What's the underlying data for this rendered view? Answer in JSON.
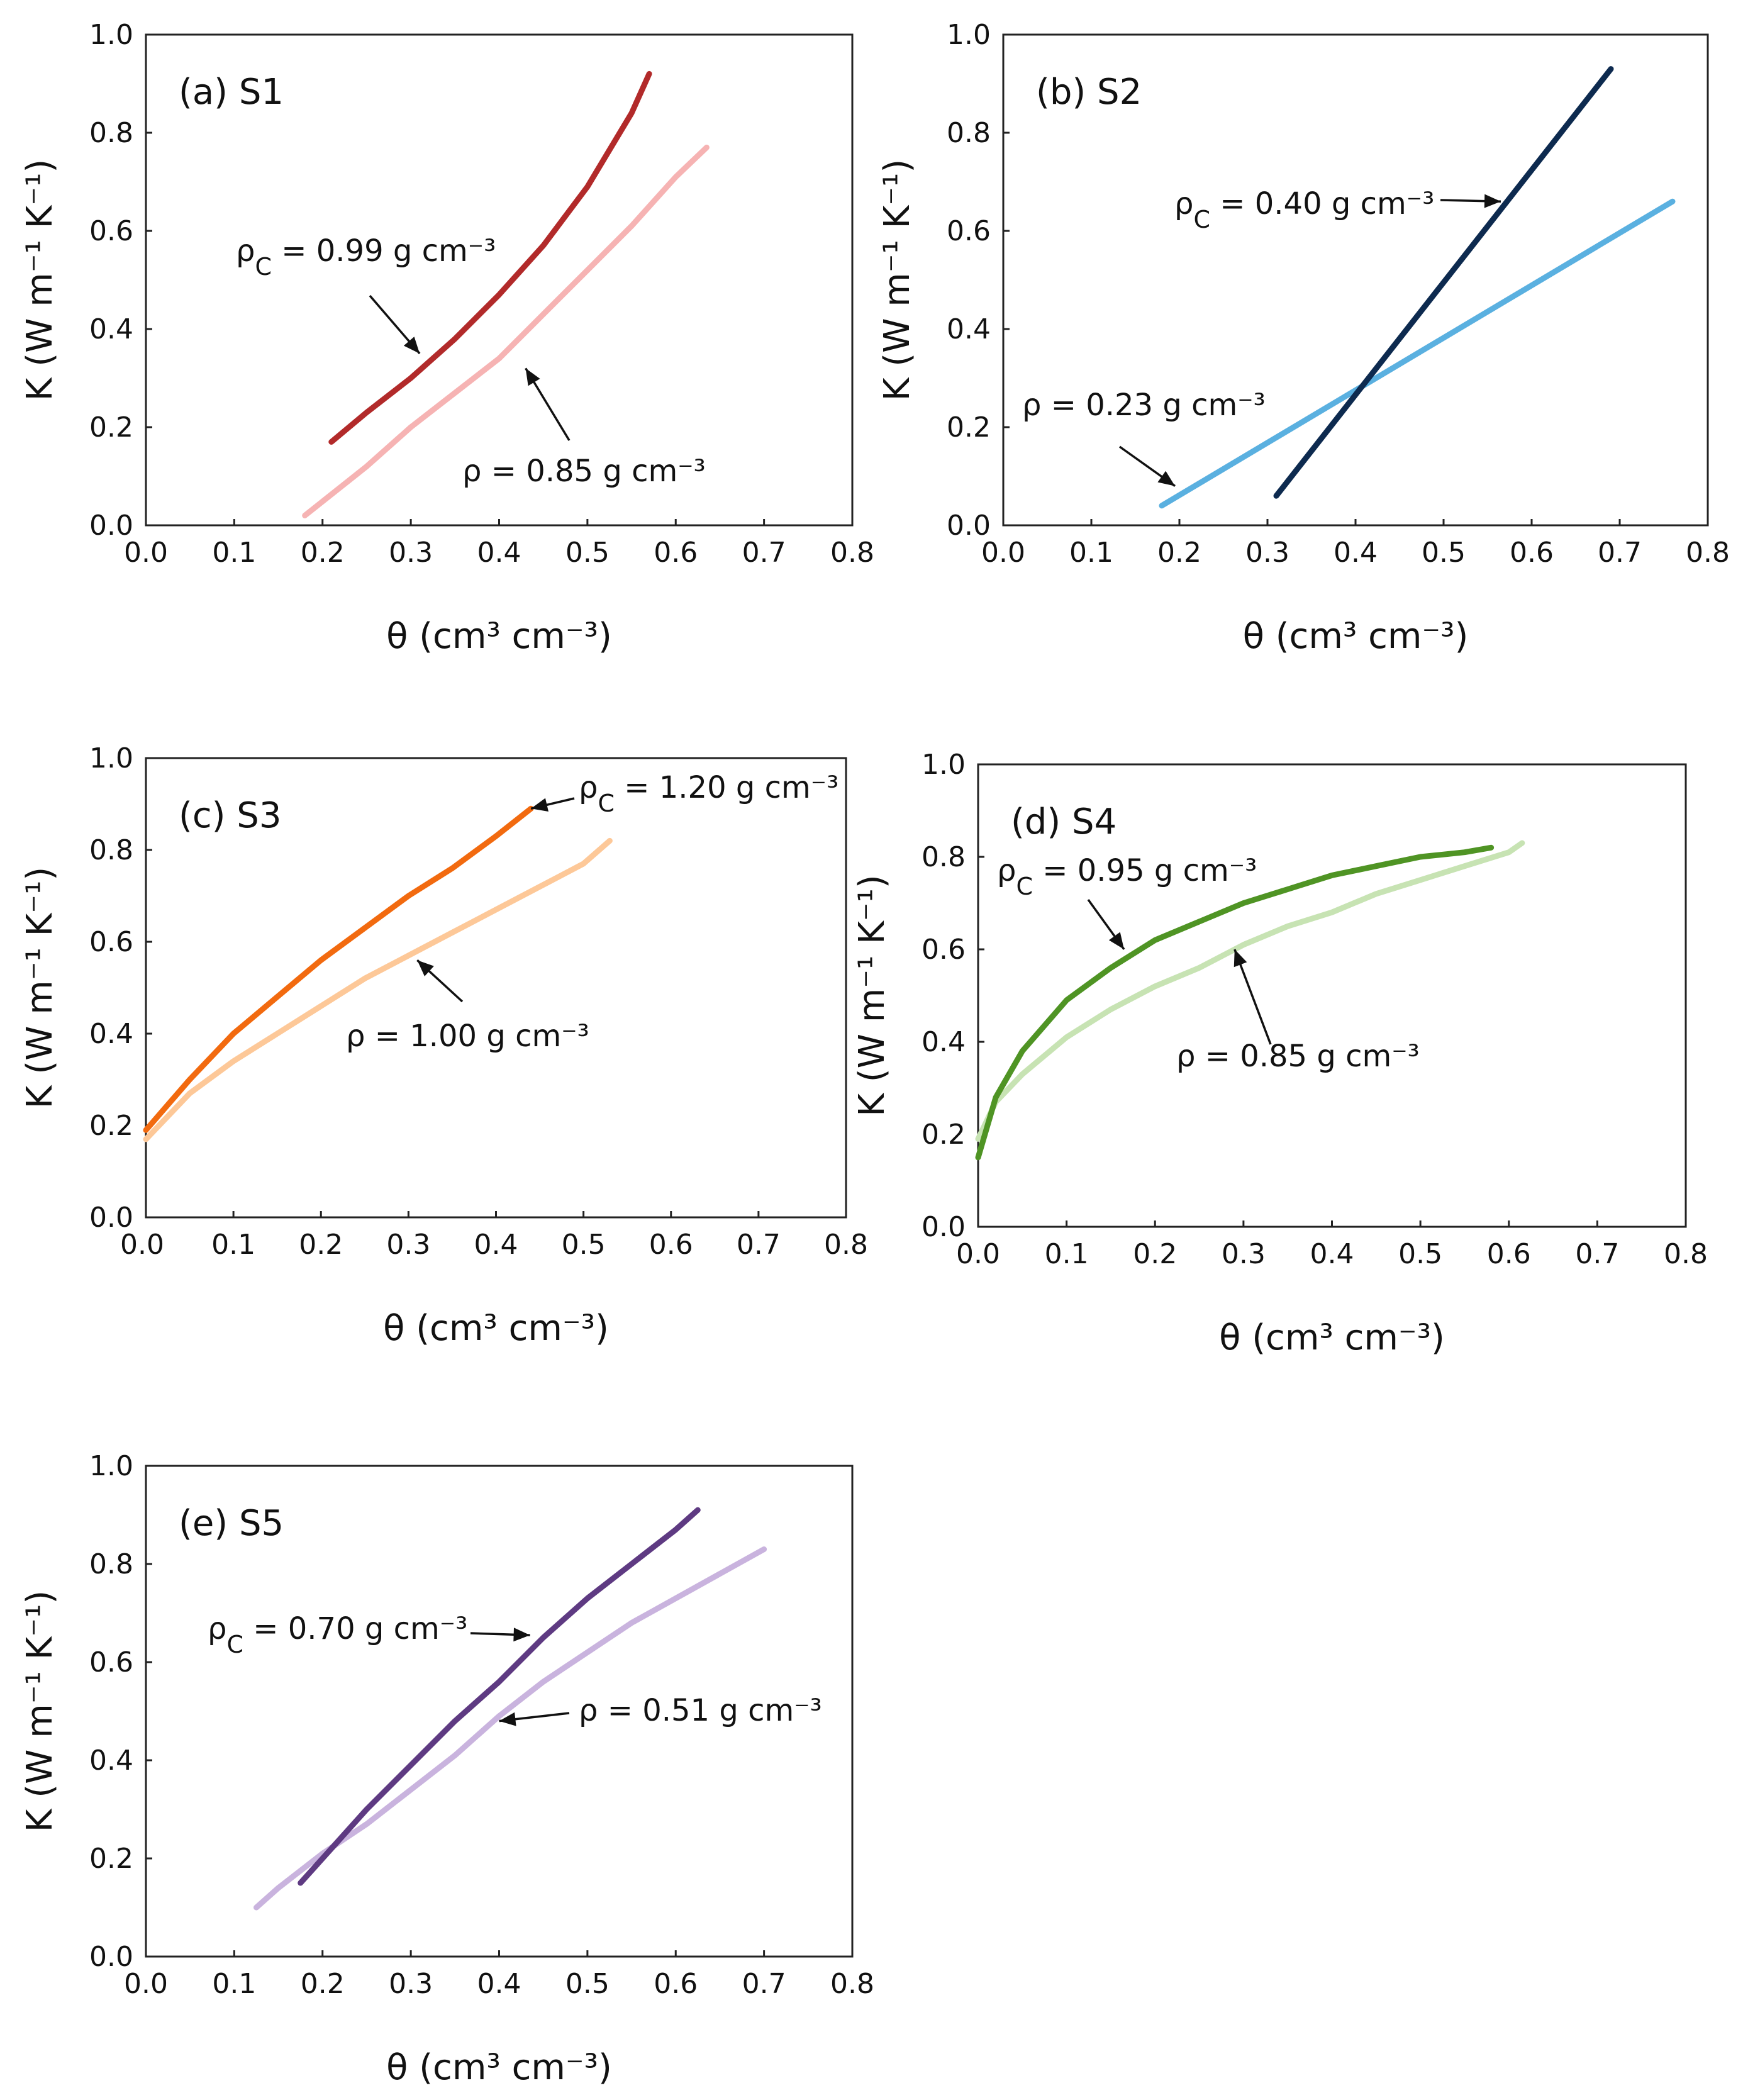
{
  "figure": {
    "xlabel": "θ (cm³ cm⁻³)",
    "ylabel": "K (W m⁻¹ K⁻¹)"
  },
  "chart_data": [
    {
      "type": "line",
      "id": "S1",
      "title": "(a) S1",
      "xlabel": "θ (cm³ cm⁻³)",
      "ylabel": "K (W m⁻¹ K⁻¹)",
      "xlim": [
        0.0,
        0.8
      ],
      "ylim": [
        0.0,
        1.0
      ],
      "x_ticks": [
        "0.0",
        "0.1",
        "0.2",
        "0.3",
        "0.4",
        "0.5",
        "0.6",
        "0.7",
        "0.8"
      ],
      "y_ticks": [
        "0.0",
        "0.2",
        "0.4",
        "0.6",
        "0.8",
        "1.0"
      ],
      "series": [
        {
          "name": "ρc = 0.99 g cm⁻³",
          "color": "#b22a2a",
          "x": [
            0.21,
            0.25,
            0.3,
            0.35,
            0.4,
            0.45,
            0.5,
            0.55,
            0.57
          ],
          "y": [
            0.17,
            0.23,
            0.3,
            0.38,
            0.47,
            0.57,
            0.69,
            0.84,
            0.92
          ]
        },
        {
          "name": "ρ = 0.85 g cm⁻³",
          "color": "#f6b3b3",
          "x": [
            0.18,
            0.25,
            0.3,
            0.35,
            0.4,
            0.45,
            0.5,
            0.55,
            0.6,
            0.635
          ],
          "y": [
            0.02,
            0.12,
            0.2,
            0.27,
            0.34,
            0.43,
            0.52,
            0.61,
            0.71,
            0.77
          ]
        }
      ],
      "annotations": [
        {
          "text": "ρc = 0.99 g cm⁻³",
          "series": 0,
          "x": 0.31,
          "y": 0.35
        },
        {
          "text": "ρ = 0.85 g cm⁻³",
          "series": 1,
          "x": 0.43,
          "y": 0.32
        }
      ]
    },
    {
      "type": "line",
      "id": "S2",
      "title": "(b) S2",
      "xlabel": "θ (cm³ cm⁻³)",
      "ylabel": "K (W m⁻¹ K⁻¹)",
      "xlim": [
        0.0,
        0.8
      ],
      "ylim": [
        0.0,
        1.0
      ],
      "x_ticks": [
        "0.0",
        "0.1",
        "0.2",
        "0.3",
        "0.4",
        "0.5",
        "0.6",
        "0.7",
        "0.8"
      ],
      "y_ticks": [
        "0.0",
        "0.2",
        "0.4",
        "0.6",
        "0.8",
        "1.0"
      ],
      "series": [
        {
          "name": "ρc = 0.40 g cm⁻³",
          "color": "#0d2a4f",
          "x": [
            0.31,
            0.69
          ],
          "y": [
            0.06,
            0.93
          ]
        },
        {
          "name": "ρ = 0.23 g cm⁻³",
          "color": "#5ab0e0",
          "x": [
            0.18,
            0.76
          ],
          "y": [
            0.04,
            0.66
          ]
        }
      ],
      "annotations": [
        {
          "text": "ρc = 0.40 g cm⁻³",
          "series": 0,
          "x": 0.565,
          "y": 0.66
        },
        {
          "text": "ρ = 0.23 g cm⁻³",
          "series": 1,
          "x": 0.195,
          "y": 0.08
        }
      ]
    },
    {
      "type": "line",
      "id": "S3",
      "title": "(c) S3",
      "xlabel": "θ (cm³ cm⁻³)",
      "ylabel": "K (W m⁻¹ K⁻¹)",
      "xlim": [
        0.0,
        0.8
      ],
      "ylim": [
        0.0,
        1.0
      ],
      "x_ticks": [
        "0.0",
        "0.1",
        "0.2",
        "0.3",
        "0.4",
        "0.5",
        "0.6",
        "0.7",
        "0.8"
      ],
      "y_ticks": [
        "0.0",
        "0.2",
        "0.4",
        "0.6",
        "0.8",
        "1.0"
      ],
      "series": [
        {
          "name": "ρc = 1.20 g cm⁻³",
          "color": "#f26a0f",
          "x": [
            0.0,
            0.05,
            0.1,
            0.15,
            0.2,
            0.25,
            0.3,
            0.35,
            0.4,
            0.44
          ],
          "y": [
            0.19,
            0.3,
            0.4,
            0.48,
            0.56,
            0.63,
            0.7,
            0.76,
            0.83,
            0.89
          ]
        },
        {
          "name": "ρ = 1.00 g cm⁻³",
          "color": "#fdc898",
          "x": [
            0.0,
            0.05,
            0.1,
            0.15,
            0.2,
            0.25,
            0.3,
            0.35,
            0.4,
            0.45,
            0.5,
            0.53
          ],
          "y": [
            0.17,
            0.27,
            0.34,
            0.4,
            0.46,
            0.52,
            0.57,
            0.62,
            0.67,
            0.72,
            0.77,
            0.82
          ]
        }
      ],
      "annotations": [
        {
          "text": "ρc = 1.20 g cm⁻³",
          "series": 0,
          "x": 0.44,
          "y": 0.89
        },
        {
          "text": "ρ = 1.00 g cm⁻³",
          "series": 1,
          "x": 0.31,
          "y": 0.56
        }
      ]
    },
    {
      "type": "line",
      "id": "S4",
      "title": "(d) S4",
      "xlabel": "θ (cm³ cm⁻³)",
      "ylabel": "K (W m⁻¹ K⁻¹)",
      "xlim": [
        0.0,
        0.8
      ],
      "ylim": [
        0.0,
        1.0
      ],
      "x_ticks": [
        "0.0",
        "0.1",
        "0.2",
        "0.3",
        "0.4",
        "0.5",
        "0.6",
        "0.7",
        "0.8"
      ],
      "y_ticks": [
        "0.0",
        "0.2",
        "0.4",
        "0.6",
        "0.8",
        "1.0"
      ],
      "series": [
        {
          "name": "ρc = 0.95 g cm⁻³",
          "color": "#4f9424",
          "x": [
            0.0,
            0.02,
            0.05,
            0.1,
            0.15,
            0.2,
            0.25,
            0.3,
            0.35,
            0.4,
            0.45,
            0.5,
            0.55,
            0.58
          ],
          "y": [
            0.15,
            0.28,
            0.38,
            0.49,
            0.56,
            0.62,
            0.66,
            0.7,
            0.73,
            0.76,
            0.78,
            0.8,
            0.81,
            0.82
          ]
        },
        {
          "name": "ρ = 0.85 g cm⁻³",
          "color": "#c7e3b3",
          "x": [
            0.0,
            0.02,
            0.05,
            0.1,
            0.15,
            0.2,
            0.25,
            0.3,
            0.35,
            0.4,
            0.45,
            0.5,
            0.55,
            0.6,
            0.615
          ],
          "y": [
            0.19,
            0.27,
            0.33,
            0.41,
            0.47,
            0.52,
            0.56,
            0.61,
            0.65,
            0.68,
            0.72,
            0.75,
            0.78,
            0.81,
            0.83
          ]
        }
      ],
      "annotations": [
        {
          "text": "ρc = 0.95 g cm⁻³",
          "series": 0,
          "x": 0.165,
          "y": 0.6
        },
        {
          "text": "ρ = 0.85 g cm⁻³",
          "series": 1,
          "x": 0.29,
          "y": 0.6
        }
      ]
    },
    {
      "type": "line",
      "id": "S5",
      "title": "(e) S5",
      "xlabel": "θ (cm³ cm⁻³)",
      "ylabel": "K (W m⁻¹ K⁻¹)",
      "xlim": [
        0.0,
        0.8
      ],
      "ylim": [
        0.0,
        1.0
      ],
      "x_ticks": [
        "0.0",
        "0.1",
        "0.2",
        "0.3",
        "0.4",
        "0.5",
        "0.6",
        "0.7",
        "0.8"
      ],
      "y_ticks": [
        "0.0",
        "0.2",
        "0.4",
        "0.6",
        "0.8",
        "1.0"
      ],
      "series": [
        {
          "name": "ρc = 0.70 g cm⁻³",
          "color": "#5e3a82",
          "x": [
            0.175,
            0.2,
            0.25,
            0.3,
            0.35,
            0.4,
            0.45,
            0.5,
            0.55,
            0.6,
            0.625
          ],
          "y": [
            0.15,
            0.2,
            0.3,
            0.39,
            0.48,
            0.56,
            0.65,
            0.73,
            0.8,
            0.87,
            0.91
          ]
        },
        {
          "name": "ρ = 0.51 g cm⁻³",
          "color": "#c9b3de",
          "x": [
            0.125,
            0.15,
            0.2,
            0.25,
            0.3,
            0.35,
            0.4,
            0.45,
            0.5,
            0.55,
            0.6,
            0.65,
            0.7
          ],
          "y": [
            0.1,
            0.14,
            0.21,
            0.27,
            0.34,
            0.41,
            0.49,
            0.56,
            0.62,
            0.68,
            0.73,
            0.78,
            0.83
          ]
        }
      ],
      "annotations": [
        {
          "text": "ρc = 0.70 g cm⁻³",
          "series": 0,
          "x": 0.435,
          "y": 0.655
        },
        {
          "text": "ρ = 0.51 g cm⁻³",
          "series": 1,
          "x": 0.4,
          "y": 0.48
        }
      ]
    }
  ]
}
